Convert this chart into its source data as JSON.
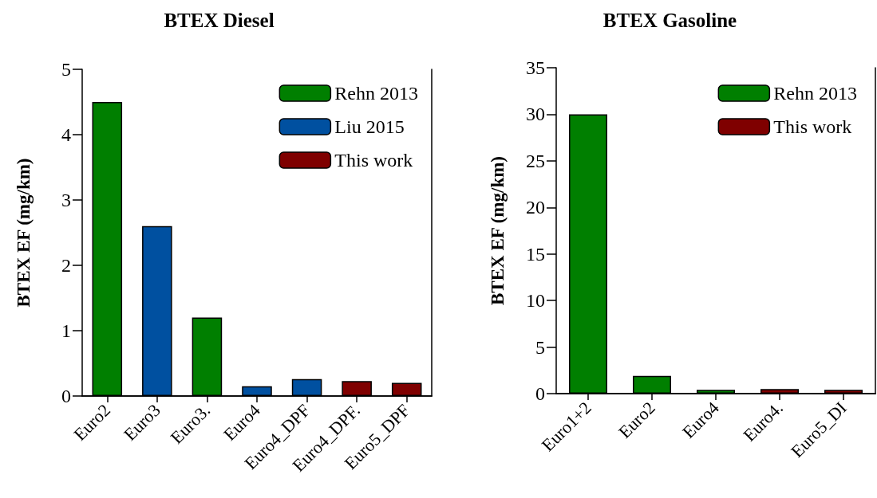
{
  "chart_data": [
    {
      "type": "bar",
      "title": "BTEX Diesel",
      "ylabel": "BTEX EF (mg/km)",
      "categories": [
        "Euro2",
        "Euro3",
        "Euro3.",
        "Euro4",
        "Euro4_DPF",
        "Euro4_DPF.",
        "Euro5_DPF"
      ],
      "series": [
        {
          "name": "Rehn 2013",
          "color": "#007f00",
          "values": [
            4.5,
            null,
            1.2,
            null,
            null,
            null,
            null
          ]
        },
        {
          "name": "Liu 2015",
          "color": "#0050a0",
          "values": [
            null,
            2.6,
            null,
            0.15,
            0.26,
            null,
            null
          ]
        },
        {
          "name": "This work",
          "color": "#7f0000",
          "values": [
            null,
            null,
            null,
            null,
            null,
            0.23,
            0.2
          ]
        }
      ],
      "ylim": [
        0,
        5
      ],
      "yticks": [
        0,
        1,
        2,
        3,
        4,
        5
      ],
      "grid": false,
      "legend": "top right"
    },
    {
      "type": "bar",
      "title": "BTEX Gasoline",
      "ylabel": "BTEX EF (mg/km)",
      "categories": [
        "Euro1+2",
        "Euro2",
        "Euro4",
        "Euro4.",
        "Euro5_DI"
      ],
      "series": [
        {
          "name": "Rehn 2013",
          "color": "#007f00",
          "values": [
            30,
            1.9,
            0.4,
            null,
            null
          ]
        },
        {
          "name": "This work",
          "color": "#7f0000",
          "values": [
            null,
            null,
            null,
            0.5,
            0.4
          ]
        }
      ],
      "ylim": [
        0,
        35
      ],
      "yticks": [
        0,
        5,
        10,
        15,
        20,
        25,
        30,
        35
      ],
      "grid": false,
      "legend": "top right"
    }
  ]
}
